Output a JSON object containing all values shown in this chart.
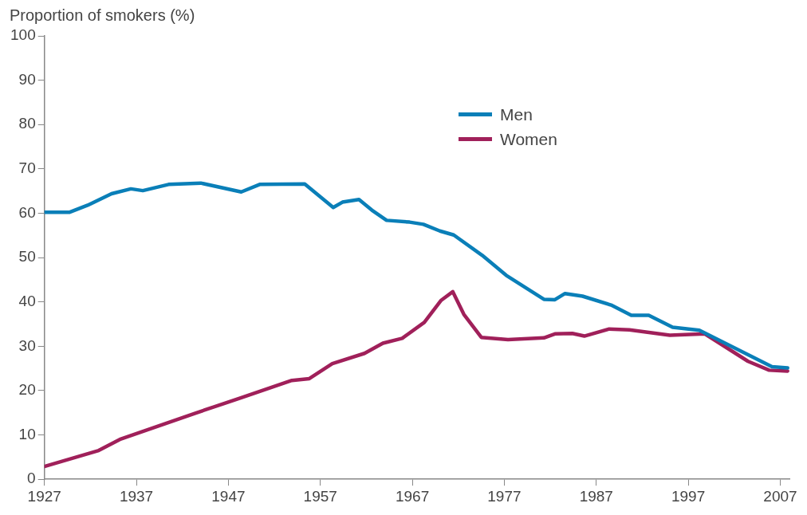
{
  "chart_data": {
    "type": "line",
    "ylabel": "Proportion of smokers (%)",
    "xlim": [
      1927,
      2008
    ],
    "xticks": [
      1927,
      1937,
      1947,
      1957,
      1967,
      1977,
      1987,
      1997,
      2007
    ],
    "ylim": [
      0,
      100
    ],
    "yticks": [
      0,
      10,
      20,
      30,
      40,
      50,
      60,
      70,
      80,
      90,
      100
    ],
    "grid": false,
    "legend": "top",
    "marker": "none",
    "line_style": "solid",
    "series": [
      {
        "name": "Men",
        "color": "#0a7fb8",
        "x": [
          1927,
          1929.7,
          1931.7,
          1934.3,
          1936.4,
          1937.7,
          1940.5,
          1944,
          1948.4,
          1950.4,
          1955.3,
          1958.4,
          1959.4,
          1961.2,
          1962.6,
          1964.2,
          1966.7,
          1968.2,
          1970,
          1971.5,
          1974.6,
          1977.2,
          1981.3,
          1982.5,
          1983.6,
          1985.5,
          1988.6,
          1990.8,
          1992.7,
          1995.3,
          1998.2,
          2006.1,
          2007.8
        ],
        "values": [
          60.2,
          60.2,
          61.8,
          64.4,
          65.5,
          65.1,
          66.5,
          66.8,
          64.8,
          66.5,
          66.6,
          61.3,
          62.5,
          63.1,
          60.7,
          58.4,
          58,
          57.5,
          56,
          55.1,
          50.5,
          46,
          40.6,
          40.5,
          41.9,
          41.3,
          39.3,
          37,
          37,
          34.3,
          33.6,
          25.4,
          25.1
        ]
      },
      {
        "name": "Women",
        "color": "#a0205a",
        "x": [
          1927,
          1932.9,
          1935.2,
          1943.4,
          1948.4,
          1953.9,
          1955.8,
          1958.3,
          1961.8,
          1963.8,
          1965.9,
          1968.3,
          1970.1,
          1971.4,
          1972.6,
          1974.5,
          1977.4,
          1981.3,
          1982.5,
          1984.4,
          1985.7,
          1988.4,
          1990.6,
          1995,
          1998.8,
          2003.5,
          2005.8,
          2007.8
        ],
        "values": [
          2.9,
          6.5,
          9,
          14.9,
          18.4,
          22.3,
          22.7,
          26.1,
          28.4,
          30.7,
          31.8,
          35.4,
          40.3,
          42.3,
          37.2,
          32,
          31.5,
          31.9,
          32.8,
          32.9,
          32.3,
          33.9,
          33.7,
          32.5,
          32.8,
          26.6,
          24.6,
          24.4
        ]
      }
    ]
  }
}
